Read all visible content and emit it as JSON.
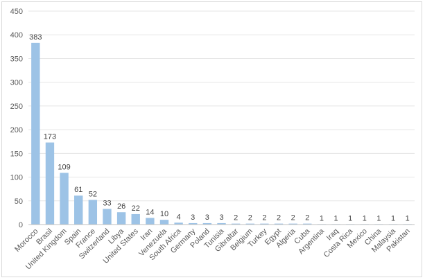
{
  "chart_data": {
    "type": "bar",
    "categories": [
      "Morocco",
      "Brasil",
      "United Kingdom",
      "Spain",
      "France",
      "Switzerland",
      "Libya",
      "United States",
      "Iran",
      "Venezuela",
      "South Africa",
      "Germany",
      "Poland",
      "Tunisia",
      "Gibraltar",
      "Belgium",
      "Turkey",
      "Egypt",
      "Algeria",
      "Cuba",
      "Argentina",
      "Iraq",
      "Costa Rica",
      "Mexico",
      "China",
      "Malaysia",
      "Pakistan"
    ],
    "values": [
      383,
      173,
      109,
      61,
      52,
      33,
      26,
      22,
      14,
      10,
      4,
      3,
      3,
      3,
      2,
      2,
      2,
      2,
      2,
      2,
      1,
      1,
      1,
      1,
      1,
      1,
      1
    ],
    "ylim": [
      0,
      450
    ],
    "yticks": [
      0,
      50,
      100,
      150,
      200,
      250,
      300,
      350,
      400,
      450
    ],
    "grid": true,
    "data_labels": true,
    "bar_color": "#9dc3e6",
    "title": "",
    "xlabel": "",
    "ylabel": ""
  }
}
